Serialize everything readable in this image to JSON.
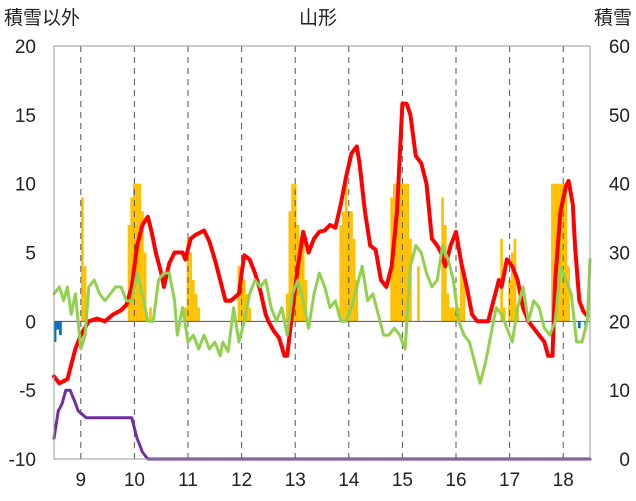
{
  "chart_data": {
    "type": "line",
    "title": "山形",
    "left_axis_label": "積雪以外",
    "right_axis_label": "積雪",
    "x_ticks": [
      "9",
      "10",
      "11",
      "12",
      "13",
      "14",
      "15",
      "16",
      "17",
      "18"
    ],
    "x_range": [
      8.5,
      18.5
    ],
    "y_left_range": [
      -10,
      20
    ],
    "y_left_ticks": [
      "-10",
      "-5",
      "0",
      "5",
      "10",
      "15",
      "20"
    ],
    "y_right_range": [
      0,
      60
    ],
    "y_right_ticks": [
      "0",
      "10",
      "20",
      "30",
      "40",
      "50",
      "60"
    ],
    "grid": "vertical-dashed",
    "colors": {
      "red": "#ff0000",
      "green": "#92d050",
      "purple": "#7030a0",
      "orange": "#ffc000",
      "blue": "#0070c0"
    },
    "series": [
      {
        "color_key": "red",
        "axis": "left",
        "points": [
          [
            8.5,
            -4
          ],
          [
            8.6,
            -4.5
          ],
          [
            8.75,
            -4.2
          ],
          [
            8.9,
            -2
          ],
          [
            9.0,
            -1
          ],
          [
            9.15,
            0
          ],
          [
            9.3,
            0.2
          ],
          [
            9.45,
            0
          ],
          [
            9.6,
            0.5
          ],
          [
            9.75,
            0.8
          ],
          [
            9.85,
            1.2
          ],
          [
            9.95,
            2.5
          ],
          [
            10.05,
            5.5
          ],
          [
            10.15,
            7
          ],
          [
            10.25,
            7.6
          ],
          [
            10.32,
            6.5
          ],
          [
            10.4,
            5
          ],
          [
            10.5,
            3.5
          ],
          [
            10.55,
            2.5
          ],
          [
            10.65,
            4.2
          ],
          [
            10.75,
            5
          ],
          [
            10.9,
            5
          ],
          [
            10.95,
            4.5
          ],
          [
            11.05,
            6
          ],
          [
            11.15,
            6.3
          ],
          [
            11.3,
            6.6
          ],
          [
            11.4,
            5.8
          ],
          [
            11.5,
            4.5
          ],
          [
            11.6,
            3
          ],
          [
            11.7,
            1.5
          ],
          [
            11.8,
            1.5
          ],
          [
            11.95,
            2
          ],
          [
            12.0,
            3.5
          ],
          [
            12.05,
            4.8
          ],
          [
            12.15,
            4.5
          ],
          [
            12.25,
            3.5
          ],
          [
            12.35,
            2.2
          ],
          [
            12.45,
            0.5
          ],
          [
            12.5,
            0
          ],
          [
            12.6,
            -0.7
          ],
          [
            12.7,
            -1.2
          ],
          [
            12.8,
            -2.5
          ],
          [
            12.85,
            -2.5
          ],
          [
            12.95,
            0.8
          ],
          [
            13.05,
            4
          ],
          [
            13.15,
            6.5
          ],
          [
            13.25,
            5
          ],
          [
            13.35,
            6
          ],
          [
            13.45,
            6.5
          ],
          [
            13.55,
            6.6
          ],
          [
            13.65,
            7
          ],
          [
            13.75,
            6.8
          ],
          [
            13.85,
            8.5
          ],
          [
            13.95,
            10.5
          ],
          [
            14.05,
            12.2
          ],
          [
            14.15,
            12.7
          ],
          [
            14.2,
            11.5
          ],
          [
            14.3,
            8
          ],
          [
            14.4,
            5.5
          ],
          [
            14.5,
            5.2
          ],
          [
            14.6,
            3
          ],
          [
            14.7,
            2.5
          ],
          [
            14.8,
            4
          ],
          [
            14.9,
            8
          ],
          [
            15.0,
            15.8
          ],
          [
            15.08,
            15.8
          ],
          [
            15.15,
            15
          ],
          [
            15.25,
            12
          ],
          [
            15.35,
            11.5
          ],
          [
            15.45,
            10
          ],
          [
            15.55,
            6
          ],
          [
            15.65,
            5.5
          ],
          [
            15.72,
            5
          ],
          [
            15.8,
            4
          ],
          [
            15.9,
            5.5
          ],
          [
            16.0,
            6.5
          ],
          [
            16.1,
            4.2
          ],
          [
            16.2,
            2.5
          ],
          [
            16.3,
            0.5
          ],
          [
            16.4,
            0
          ],
          [
            16.5,
            0
          ],
          [
            16.6,
            0
          ],
          [
            16.7,
            1.5
          ],
          [
            16.8,
            3
          ],
          [
            16.85,
            2.5
          ],
          [
            16.95,
            4.5
          ],
          [
            17.05,
            4
          ],
          [
            17.15,
            3
          ],
          [
            17.25,
            1
          ],
          [
            17.35,
            0
          ],
          [
            17.45,
            -0.5
          ],
          [
            17.55,
            -1
          ],
          [
            17.65,
            -1.5
          ],
          [
            17.72,
            -2.5
          ],
          [
            17.8,
            -2.5
          ],
          [
            17.85,
            3
          ],
          [
            17.95,
            8
          ],
          [
            18.05,
            9.8
          ],
          [
            18.1,
            10.2
          ],
          [
            18.18,
            8.5
          ],
          [
            18.22,
            5.5
          ],
          [
            18.3,
            1.5
          ],
          [
            18.38,
            0.7
          ],
          [
            18.45,
            0.4
          ]
        ]
      },
      {
        "color_key": "green",
        "axis": "left",
        "points": [
          [
            8.5,
            2
          ],
          [
            8.6,
            2.5
          ],
          [
            8.68,
            1.5
          ],
          [
            8.75,
            2.5
          ],
          [
            8.82,
            0.5
          ],
          [
            8.9,
            2
          ],
          [
            9.0,
            -2
          ],
          [
            9.08,
            -1
          ],
          [
            9.15,
            2.5
          ],
          [
            9.25,
            3
          ],
          [
            9.35,
            2
          ],
          [
            9.45,
            1.5
          ],
          [
            9.55,
            2
          ],
          [
            9.65,
            2.5
          ],
          [
            9.75,
            2.5
          ],
          [
            9.85,
            1.5
          ],
          [
            9.95,
            1.5
          ],
          [
            10.05,
            3.5
          ],
          [
            10.15,
            2
          ],
          [
            10.25,
            0
          ],
          [
            10.35,
            0
          ],
          [
            10.45,
            3
          ],
          [
            10.55,
            3.5
          ],
          [
            10.65,
            3.5
          ],
          [
            10.75,
            1.5
          ],
          [
            10.8,
            -1
          ],
          [
            10.9,
            1
          ],
          [
            11.0,
            -1.5
          ],
          [
            11.1,
            -1
          ],
          [
            11.2,
            -2
          ],
          [
            11.3,
            -1
          ],
          [
            11.4,
            -2
          ],
          [
            11.5,
            -1.5
          ],
          [
            11.6,
            -2.5
          ],
          [
            11.65,
            -1.5
          ],
          [
            11.75,
            -2.2
          ],
          [
            11.85,
            1
          ],
          [
            11.95,
            -1.5
          ],
          [
            12.05,
            0
          ],
          [
            12.15,
            2
          ],
          [
            12.25,
            3
          ],
          [
            12.35,
            2.5
          ],
          [
            12.45,
            3
          ],
          [
            12.55,
            1
          ],
          [
            12.65,
            0
          ],
          [
            12.75,
            1
          ],
          [
            12.85,
            -1
          ],
          [
            12.95,
            2
          ],
          [
            13.05,
            3
          ],
          [
            13.15,
            1.5
          ],
          [
            13.25,
            -0.5
          ],
          [
            13.35,
            2
          ],
          [
            13.45,
            3.5
          ],
          [
            13.55,
            2.5
          ],
          [
            13.65,
            1
          ],
          [
            13.75,
            1.5
          ],
          [
            13.85,
            0
          ],
          [
            13.95,
            0
          ],
          [
            14.05,
            1
          ],
          [
            14.15,
            2.5
          ],
          [
            14.25,
            4
          ],
          [
            14.35,
            1.5
          ],
          [
            14.45,
            2
          ],
          [
            14.55,
            0.5
          ],
          [
            14.65,
            -1
          ],
          [
            14.75,
            -1
          ],
          [
            14.85,
            -0.5
          ],
          [
            14.95,
            -1
          ],
          [
            15.05,
            -2
          ],
          [
            15.15,
            4
          ],
          [
            15.25,
            5.5
          ],
          [
            15.35,
            5
          ],
          [
            15.45,
            3.5
          ],
          [
            15.55,
            2.5
          ],
          [
            15.65,
            3
          ],
          [
            15.75,
            5.5
          ],
          [
            15.85,
            4.5
          ],
          [
            15.95,
            3
          ],
          [
            16.05,
            0
          ],
          [
            16.15,
            -1
          ],
          [
            16.25,
            -1.5
          ],
          [
            16.35,
            -3
          ],
          [
            16.45,
            -4.5
          ],
          [
            16.55,
            -3
          ],
          [
            16.65,
            -1
          ],
          [
            16.75,
            1
          ],
          [
            16.85,
            0.5
          ],
          [
            16.95,
            -0.5
          ],
          [
            17.05,
            -1.5
          ],
          [
            17.15,
            1
          ],
          [
            17.25,
            2.5
          ],
          [
            17.35,
            0
          ],
          [
            17.45,
            1.5
          ],
          [
            17.55,
            1
          ],
          [
            17.65,
            -0.5
          ],
          [
            17.75,
            -1
          ],
          [
            17.85,
            0
          ],
          [
            17.95,
            4
          ],
          [
            18.05,
            3
          ],
          [
            18.15,
            2
          ],
          [
            18.25,
            -1.5
          ],
          [
            18.35,
            -1.5
          ],
          [
            18.45,
            0
          ],
          [
            18.5,
            4.5
          ]
        ]
      },
      {
        "color_key": "purple",
        "axis": "right",
        "points": [
          [
            8.5,
            3
          ],
          [
            8.58,
            7
          ],
          [
            8.65,
            8
          ],
          [
            8.72,
            10
          ],
          [
            8.8,
            10
          ],
          [
            8.88,
            8.5
          ],
          [
            8.95,
            7
          ],
          [
            9.1,
            6
          ],
          [
            9.2,
            6
          ],
          [
            9.4,
            6
          ],
          [
            9.6,
            6
          ],
          [
            9.8,
            6
          ],
          [
            9.95,
            6
          ],
          [
            10.0,
            4.5
          ],
          [
            10.05,
            3
          ],
          [
            10.1,
            2
          ],
          [
            10.15,
            1
          ],
          [
            10.25,
            0
          ],
          [
            10.5,
            0
          ],
          [
            11,
            0
          ],
          [
            12,
            0
          ],
          [
            13,
            0
          ],
          [
            14,
            0
          ],
          [
            15,
            0
          ],
          [
            16,
            0
          ],
          [
            17,
            0
          ],
          [
            18,
            0
          ],
          [
            18.5,
            0
          ]
        ]
      }
    ],
    "bars": [
      {
        "color_key": "orange",
        "axis": "left",
        "values": [
          [
            9.03,
            9
          ],
          [
            9.08,
            4
          ],
          [
            9.9,
            7
          ],
          [
            9.95,
            9
          ],
          [
            10.0,
            10
          ],
          [
            10.05,
            10
          ],
          [
            10.1,
            10
          ],
          [
            10.15,
            8
          ],
          [
            10.2,
            5
          ],
          [
            10.3,
            1
          ],
          [
            10.95,
            1
          ],
          [
            11.0,
            6
          ],
          [
            11.05,
            5
          ],
          [
            11.1,
            3
          ],
          [
            11.15,
            2
          ],
          [
            11.2,
            1
          ],
          [
            11.95,
            4
          ],
          [
            12.0,
            4
          ],
          [
            12.05,
            3
          ],
          [
            12.1,
            2
          ],
          [
            12.15,
            1
          ],
          [
            12.85,
            2
          ],
          [
            12.9,
            8
          ],
          [
            12.95,
            10
          ],
          [
            13.0,
            10
          ],
          [
            13.05,
            7
          ],
          [
            13.1,
            6
          ],
          [
            13.15,
            6
          ],
          [
            13.2,
            3
          ],
          [
            13.85,
            7
          ],
          [
            13.9,
            8
          ],
          [
            13.95,
            10
          ],
          [
            14.0,
            8
          ],
          [
            14.05,
            8
          ],
          [
            14.1,
            6
          ],
          [
            14.15,
            3
          ],
          [
            14.8,
            9
          ],
          [
            14.85,
            10
          ],
          [
            14.9,
            10
          ],
          [
            14.95,
            10
          ],
          [
            15.0,
            10
          ],
          [
            15.05,
            10
          ],
          [
            15.1,
            10
          ],
          [
            15.15,
            6
          ],
          [
            15.3,
            4
          ],
          [
            15.75,
            9
          ],
          [
            15.8,
            7
          ],
          [
            15.85,
            2
          ],
          [
            15.9,
            1
          ],
          [
            15.95,
            1
          ],
          [
            16.0,
            1
          ],
          [
            16.05,
            1
          ],
          [
            16.1,
            4
          ],
          [
            16.15,
            3
          ],
          [
            16.85,
            6
          ],
          [
            16.9,
            1
          ],
          [
            17.0,
            3
          ],
          [
            17.05,
            5
          ],
          [
            17.1,
            6
          ],
          [
            17.15,
            1
          ],
          [
            17.8,
            10
          ],
          [
            17.85,
            10
          ],
          [
            17.9,
            10
          ],
          [
            17.95,
            10
          ],
          [
            18.0,
            10
          ],
          [
            18.05,
            10
          ],
          [
            18.1,
            4
          ]
        ]
      },
      {
        "color_key": "blue",
        "axis": "left",
        "values": [
          [
            8.52,
            -1.5
          ],
          [
            8.57,
            -0.6
          ],
          [
            8.62,
            -1
          ],
          [
            18.3,
            -0.5
          ],
          [
            18.42,
            -0.5
          ]
        ]
      }
    ]
  }
}
